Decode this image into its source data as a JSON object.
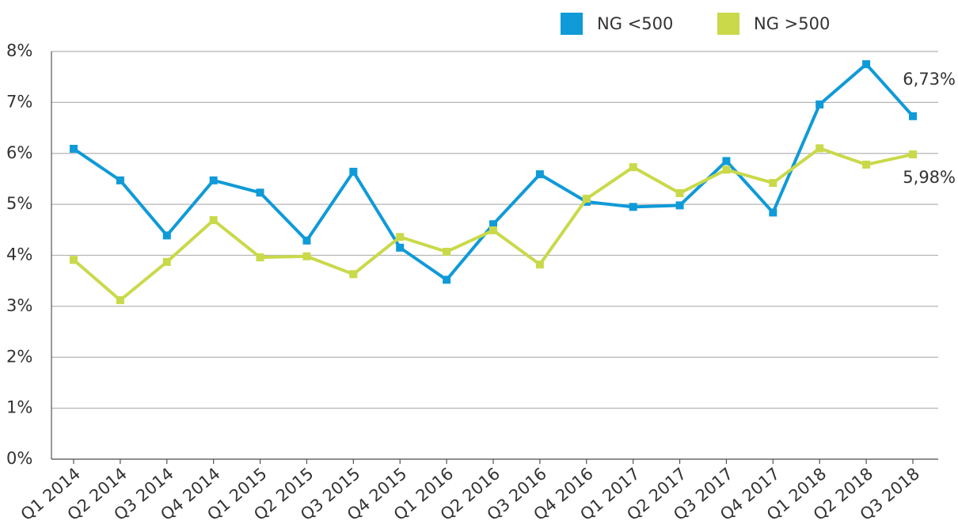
{
  "chart_data": {
    "type": "line",
    "categories": [
      "Q1 2014",
      "Q2 2014",
      "Q3 2014",
      "Q4 2014",
      "Q1 2015",
      "Q2 2015",
      "Q3 2015",
      "Q4 2015",
      "Q1 2016",
      "Q2 2016",
      "Q3 2016",
      "Q4 2016",
      "Q1 2017",
      "Q2 2017",
      "Q3 2017",
      "Q4 2017",
      "Q1 2018",
      "Q2 2018",
      "Q3 2018"
    ],
    "series": [
      {
        "name": "NG <500",
        "color": "#0f9ad8",
        "values": [
          6.09,
          5.47,
          4.39,
          5.47,
          5.23,
          4.29,
          5.64,
          4.15,
          3.52,
          4.61,
          5.59,
          5.05,
          4.95,
          4.98,
          5.85,
          4.84,
          6.96,
          7.75,
          6.73
        ],
        "value_labels": [
          null,
          null,
          null,
          null,
          null,
          null,
          null,
          null,
          null,
          null,
          null,
          null,
          null,
          null,
          null,
          null,
          null,
          null,
          "6,73%"
        ]
      },
      {
        "name": "NG >500",
        "color": "#c9d94a",
        "values": [
          3.91,
          3.12,
          3.87,
          4.69,
          3.96,
          3.98,
          3.63,
          4.36,
          4.07,
          4.49,
          3.82,
          5.11,
          5.73,
          5.22,
          5.68,
          5.42,
          6.1,
          5.78,
          5.98
        ],
        "value_labels": [
          null,
          null,
          null,
          null,
          null,
          null,
          null,
          null,
          null,
          null,
          null,
          null,
          null,
          null,
          null,
          null,
          null,
          null,
          "5,98%"
        ]
      }
    ],
    "ylim": [
      0,
      8
    ],
    "yticks": [
      {
        "value": 0,
        "label": "0%"
      },
      {
        "value": 1,
        "label": "1%"
      },
      {
        "value": 2,
        "label": "2%"
      },
      {
        "value": 3,
        "label": "3%"
      },
      {
        "value": 4,
        "label": "4%"
      },
      {
        "value": 5,
        "label": "5%"
      },
      {
        "value": 6,
        "label": "6%"
      },
      {
        "value": 7,
        "label": "7%"
      },
      {
        "value": 8,
        "label": "8%"
      }
    ],
    "grid": true,
    "legend": "top-right"
  }
}
